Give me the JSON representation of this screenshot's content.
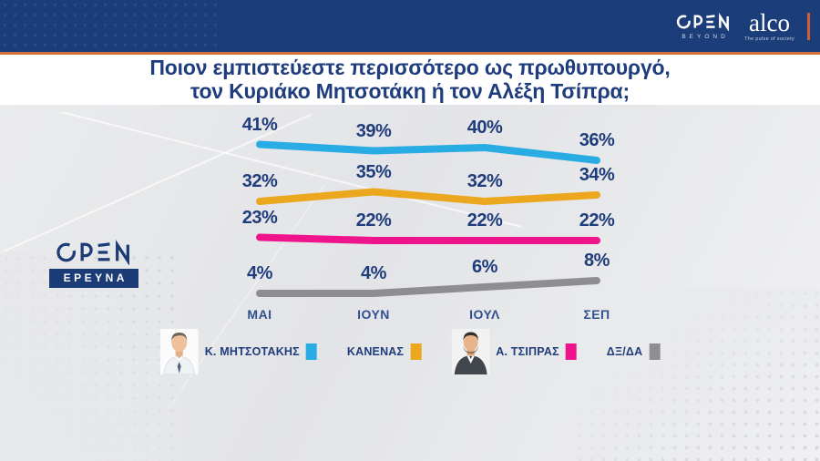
{
  "topbar": {
    "open_logo": "OPEN",
    "open_sub": "BEYOND",
    "alco_logo": "alco",
    "alco_tagline": "The pulse of society"
  },
  "question": {
    "line1": "Ποιον εμπιστεύεστε περισσότερο ως πρωθυπουργό,",
    "line2": "τον Κυριάκο Μητσοτάκη ή τον Αλέξη Τσίπρα;"
  },
  "panel_logo": {
    "open": "OPEN",
    "label": "ΕΡΕΥΝΑ"
  },
  "chart_data": {
    "type": "line",
    "title": "Ποιον εμπιστεύεστε περισσότερο ως πρωθυπουργό, τον Κυριάκο Μητσοτάκη ή τον Αλέξη Τσίπρα;",
    "categories": [
      "ΜΑΙ",
      "ΙΟΥΝ",
      "ΙΟΥΛ",
      "ΣΕΠ"
    ],
    "series": [
      {
        "key": "mitsotakis",
        "name": "Κ. ΜΗΤΣΟΤΑΚΗΣ",
        "color": "#29ACE3",
        "values": [
          41,
          39,
          40,
          36
        ],
        "avatar": "mitsotakis"
      },
      {
        "key": "kanenas",
        "name": "ΚΑΝΕΝΑΣ",
        "color": "#EBA81E",
        "values": [
          32,
          35,
          32,
          34
        ]
      },
      {
        "key": "tsipras",
        "name": "Α. ΤΣΙΠΡΑΣ",
        "color": "#F0148C",
        "values": [
          23,
          22,
          22,
          22
        ],
        "avatar": "tsipras"
      },
      {
        "key": "dxda",
        "name": "ΔΞ/ΔΑ",
        "color": "#8E8E90",
        "values": [
          4,
          4,
          6,
          8
        ]
      }
    ],
    "value_suffix": "%",
    "ylim": [
      0,
      45
    ],
    "grid": false,
    "legend_position": "bottom"
  },
  "colors": {
    "topbar_navy": "#1B3E7A",
    "accent_orange": "#D2703F",
    "text_navy": "#1F3C7C",
    "panel_bg": "#E7E8EA"
  }
}
